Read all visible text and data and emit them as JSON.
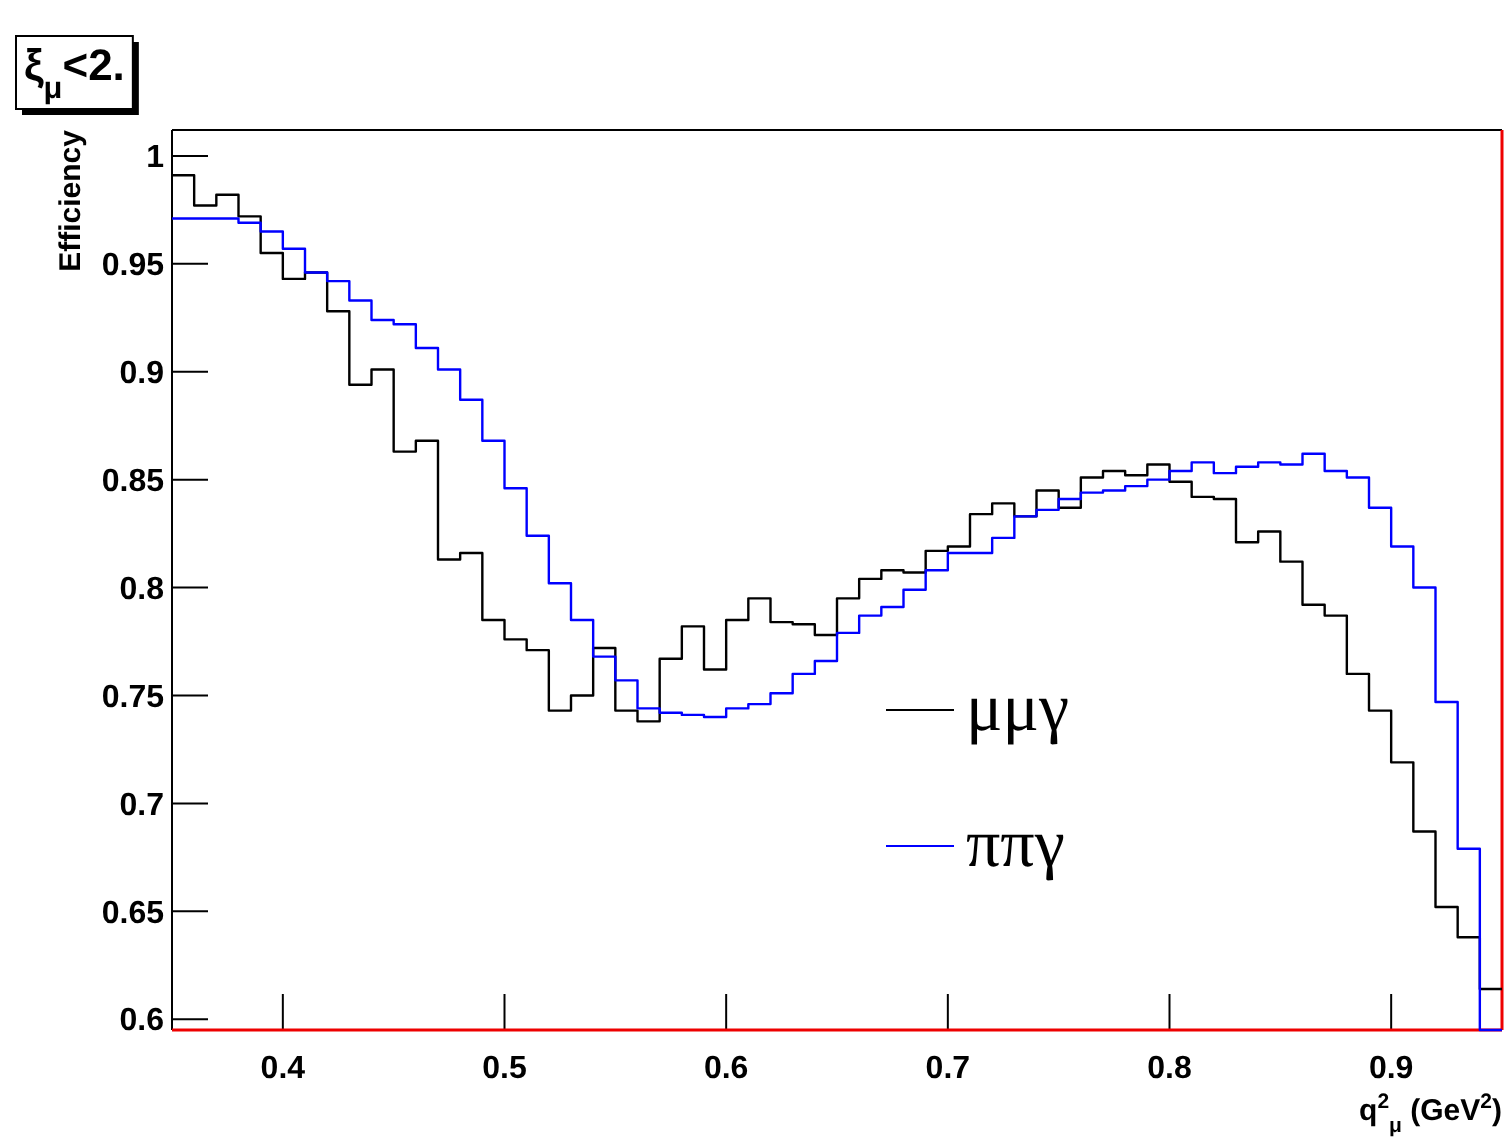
{
  "chart_data": {
    "type": "histogram",
    "title": "ξ$_{μ}$<2.",
    "xlabel": "q$^{2}$$_{μ}$ (GeV$^{2}$)",
    "ylabel": "Efficiency",
    "bins": [
      0.35,
      0.36,
      0.37,
      0.38,
      0.39,
      0.4,
      0.41,
      0.42,
      0.43,
      0.44,
      0.45,
      0.46,
      0.47,
      0.48,
      0.49,
      0.5,
      0.51,
      0.52,
      0.53,
      0.54,
      0.55,
      0.56,
      0.57,
      0.58,
      0.59,
      0.6,
      0.61,
      0.62,
      0.63,
      0.64,
      0.65,
      0.66,
      0.67,
      0.68,
      0.69,
      0.7,
      0.71,
      0.72,
      0.73,
      0.74,
      0.75,
      0.76,
      0.77,
      0.78,
      0.79,
      0.8,
      0.81,
      0.82,
      0.83,
      0.84,
      0.85,
      0.86,
      0.87,
      0.88,
      0.89,
      0.9,
      0.91,
      0.92,
      0.93,
      0.94,
      0.95
    ],
    "series": [
      {
        "name": "μμγ",
        "color": "#000000",
        "values": [
          0.991,
          0.977,
          0.982,
          0.972,
          0.955,
          0.943,
          0.946,
          0.928,
          0.894,
          0.901,
          0.863,
          0.868,
          0.813,
          0.816,
          0.785,
          0.776,
          0.771,
          0.743,
          0.75,
          0.772,
          0.743,
          0.738,
          0.767,
          0.782,
          0.762,
          0.785,
          0.795,
          0.784,
          0.783,
          0.778,
          0.795,
          0.804,
          0.808,
          0.807,
          0.817,
          0.819,
          0.834,
          0.839,
          0.833,
          0.845,
          0.837,
          0.851,
          0.854,
          0.852,
          0.857,
          0.849,
          0.842,
          0.841,
          0.821,
          0.826,
          0.812,
          0.792,
          0.787,
          0.76,
          0.743,
          0.719,
          0.687,
          0.652,
          0.638,
          0.614
        ]
      },
      {
        "name": "ππγ",
        "color": "#0000ff",
        "values": [
          0.971,
          0.971,
          0.971,
          0.969,
          0.965,
          0.957,
          0.946,
          0.942,
          0.933,
          0.924,
          0.922,
          0.911,
          0.901,
          0.887,
          0.868,
          0.846,
          0.824,
          0.802,
          0.785,
          0.768,
          0.757,
          0.744,
          0.742,
          0.741,
          0.74,
          0.744,
          0.746,
          0.751,
          0.76,
          0.766,
          0.779,
          0.787,
          0.791,
          0.799,
          0.808,
          0.816,
          0.816,
          0.823,
          0.833,
          0.836,
          0.841,
          0.844,
          0.845,
          0.847,
          0.85,
          0.854,
          0.858,
          0.853,
          0.856,
          0.858,
          0.857,
          0.862,
          0.854,
          0.851,
          0.837,
          0.819,
          0.8,
          0.747,
          0.679,
          0.595
        ]
      }
    ],
    "xlim": [
      0.35,
      0.95
    ],
    "ylim": [
      0.595,
      1.012
    ],
    "xticks": [
      0.4,
      0.5,
      0.6,
      0.7,
      0.8,
      0.9
    ],
    "yticks": [
      0.6,
      0.65,
      0.7,
      0.75,
      0.8,
      0.85,
      0.9,
      0.95,
      1
    ],
    "legend": "right",
    "grid": false
  }
}
